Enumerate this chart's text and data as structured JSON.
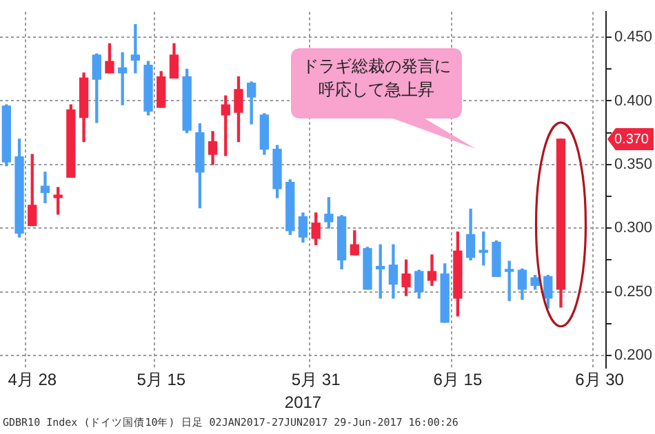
{
  "chart_data": {
    "type": "candlestick",
    "categories": [
      null,
      null,
      "4月 28",
      null,
      null,
      null,
      null,
      null,
      null,
      null,
      null,
      null,
      "5月 15",
      null,
      null,
      null,
      null,
      null,
      null,
      null,
      null,
      null,
      null,
      null,
      "5月 31",
      null,
      null,
      null,
      null,
      null,
      null,
      null,
      null,
      null,
      null,
      "6月 15",
      null,
      null,
      null,
      null,
      null,
      null,
      null,
      null,
      null,
      null,
      "6月 30"
    ],
    "ohlc": [
      [
        0.396,
        0.397,
        0.349,
        0.352
      ],
      [
        0.356,
        0.37,
        0.293,
        0.296
      ],
      [
        0.302,
        0.358,
        0.302,
        0.318
      ],
      [
        0.333,
        0.344,
        0.32,
        0.328
      ],
      [
        0.324,
        0.332,
        0.311,
        0.326
      ],
      [
        0.34,
        0.397,
        0.34,
        0.393
      ],
      [
        0.387,
        0.422,
        0.368,
        0.418
      ],
      [
        0.436,
        0.437,
        0.383,
        0.417
      ],
      [
        0.422,
        0.445,
        0.422,
        0.431
      ],
      [
        0.426,
        0.438,
        0.397,
        0.422
      ],
      [
        0.436,
        0.46,
        0.422,
        0.432
      ],
      [
        0.428,
        0.431,
        0.389,
        0.392
      ],
      [
        0.395,
        0.423,
        0.395,
        0.419
      ],
      [
        0.418,
        0.445,
        0.418,
        0.436
      ],
      [
        0.419,
        0.425,
        0.375,
        0.377
      ],
      [
        0.375,
        0.382,
        0.316,
        0.344
      ],
      [
        0.358,
        0.376,
        0.35,
        0.368
      ],
      [
        0.389,
        0.404,
        0.357,
        0.397
      ],
      [
        0.391,
        0.419,
        0.368,
        0.409
      ],
      [
        0.414,
        0.415,
        0.382,
        0.403
      ],
      [
        0.389,
        0.39,
        0.358,
        0.362
      ],
      [
        0.362,
        0.365,
        0.324,
        0.331
      ],
      [
        0.336,
        0.338,
        0.295,
        0.298
      ],
      [
        0.309,
        0.312,
        0.289,
        0.293
      ],
      [
        0.292,
        0.312,
        0.287,
        0.304
      ],
      [
        0.311,
        0.324,
        0.3,
        0.305
      ],
      [
        0.309,
        0.31,
        0.268,
        0.275
      ],
      [
        0.279,
        0.298,
        0.279,
        0.287
      ],
      [
        0.284,
        0.285,
        0.252,
        0.252
      ],
      [
        0.27,
        0.287,
        0.245,
        0.268
      ],
      [
        0.271,
        0.287,
        0.245,
        0.256
      ],
      [
        0.254,
        0.275,
        0.247,
        0.264
      ],
      [
        0.266,
        0.267,
        0.245,
        0.25
      ],
      [
        0.259,
        0.279,
        0.255,
        0.266
      ],
      [
        0.264,
        0.272,
        0.226,
        0.226
      ],
      [
        0.245,
        0.297,
        0.231,
        0.282
      ],
      [
        0.295,
        0.315,
        0.275,
        0.277
      ],
      [
        0.282,
        0.297,
        0.271,
        0.281
      ],
      [
        0.289,
        0.29,
        0.262,
        0.262
      ],
      [
        0.267,
        0.274,
        0.243,
        0.266
      ],
      [
        0.267,
        0.268,
        0.244,
        0.252
      ],
      [
        0.261,
        0.263,
        0.252,
        0.255
      ],
      [
        0.262,
        0.263,
        0.237,
        0.245
      ],
      [
        0.252,
        0.37,
        0.238,
        0.37
      ],
      null,
      null,
      null
    ],
    "colors": [
      "#4a9ff5",
      "#4a9ff5",
      "#f0243f",
      "#4a9ff5",
      "#f0243f",
      "#f0243f",
      "#f0243f",
      "#4a9ff5",
      "#f0243f",
      "#4a9ff5",
      "#4a9ff5",
      "#4a9ff5",
      "#f0243f",
      "#f0243f",
      "#4a9ff5",
      "#4a9ff5",
      "#f0243f",
      "#f0243f",
      "#f0243f",
      "#4a9ff5",
      "#4a9ff5",
      "#4a9ff5",
      "#4a9ff5",
      "#4a9ff5",
      "#f0243f",
      "#4a9ff5",
      "#4a9ff5",
      "#f0243f",
      "#4a9ff5",
      "#4a9ff5",
      "#4a9ff5",
      "#f0243f",
      "#4a9ff5",
      "#f0243f",
      "#4a9ff5",
      "#f0243f",
      "#4a9ff5",
      "#4a9ff5",
      "#4a9ff5",
      "#4a9ff5",
      "#4a9ff5",
      "#4a9ff5",
      "#4a9ff5",
      "#f0243f",
      null,
      null,
      null
    ],
    "xlabel": "2017",
    "ylim": [
      0.19,
      0.47
    ],
    "yticks": [
      {
        "value": 0.2,
        "label": "0.200"
      },
      {
        "value": 0.225,
        "label": null
      },
      {
        "value": 0.25,
        "label": "0.250"
      },
      {
        "value": 0.275,
        "label": null
      },
      {
        "value": 0.3,
        "label": "0.300"
      },
      {
        "value": 0.325,
        "label": null
      },
      {
        "value": 0.35,
        "label": "0.350"
      },
      {
        "value": 0.375,
        "label": null
      },
      {
        "value": 0.4,
        "label": "0.400"
      },
      {
        "value": 0.425,
        "label": null
      },
      {
        "value": 0.45,
        "label": "0.450"
      }
    ],
    "grid": true,
    "legend": false,
    "annotations": [
      "ドラギ総裁の発言に呼応して急上昇",
      "GDBR10 Index (ドイツ国債10年)  日足 02JAN2017-27JUN2017  29-Jun-2017 16:00:26",
      "0.370"
    ]
  }
}
